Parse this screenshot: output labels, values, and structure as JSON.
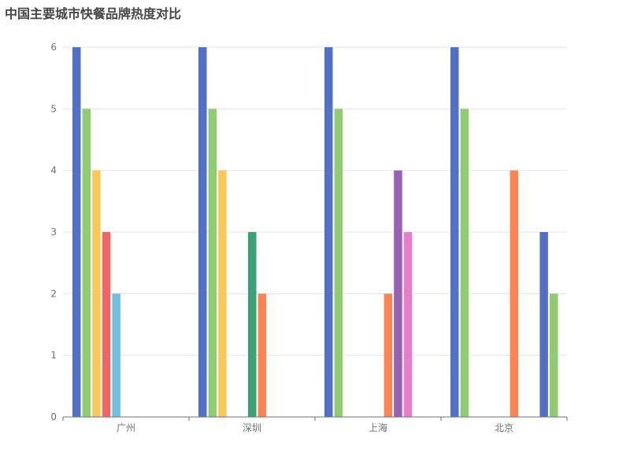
{
  "title": "中国主要城市快餐品牌热度对比",
  "chart_data": {
    "type": "bar",
    "title": "中国主要城市快餐品牌热度对比",
    "categories": [
      "广州",
      "深圳",
      "上海",
      "北京"
    ],
    "ylim": [
      0,
      6
    ],
    "yticks": [
      0,
      1,
      2,
      3,
      4,
      5,
      6
    ],
    "grid": true,
    "legend": "none",
    "slots_per_category": 9,
    "groups": [
      {
        "category": "广州",
        "bars": [
          {
            "slot": 0,
            "value": 6,
            "color": "#5470c6"
          },
          {
            "slot": 1,
            "value": 5,
            "color": "#91cc75"
          },
          {
            "slot": 2,
            "value": 4,
            "color": "#fac858"
          },
          {
            "slot": 3,
            "value": 3,
            "color": "#ee6666"
          },
          {
            "slot": 4,
            "value": 2,
            "color": "#73c0de"
          }
        ]
      },
      {
        "category": "深圳",
        "bars": [
          {
            "slot": 0,
            "value": 6,
            "color": "#5470c6"
          },
          {
            "slot": 1,
            "value": 5,
            "color": "#91cc75"
          },
          {
            "slot": 2,
            "value": 4,
            "color": "#fac858"
          },
          {
            "slot": 5,
            "value": 3,
            "color": "#3ba272"
          },
          {
            "slot": 6,
            "value": 2,
            "color": "#fc8452"
          }
        ]
      },
      {
        "category": "上海",
        "bars": [
          {
            "slot": 0,
            "value": 6,
            "color": "#5470c6"
          },
          {
            "slot": 1,
            "value": 5,
            "color": "#91cc75"
          },
          {
            "slot": 6,
            "value": 2,
            "color": "#fc8452"
          },
          {
            "slot": 7,
            "value": 4,
            "color": "#9a60b4"
          },
          {
            "slot": 8,
            "value": 3,
            "color": "#ea7ccc"
          }
        ]
      },
      {
        "category": "北京",
        "bars": [
          {
            "slot": 0,
            "value": 6,
            "color": "#5470c6"
          },
          {
            "slot": 1,
            "value": 5,
            "color": "#91cc75"
          },
          {
            "slot": 6,
            "value": 4,
            "color": "#fc8452"
          },
          {
            "slot": 9,
            "value": 3,
            "color": "#5470c6"
          },
          {
            "slot": 10,
            "value": 2,
            "color": "#91cc75"
          }
        ]
      }
    ]
  }
}
